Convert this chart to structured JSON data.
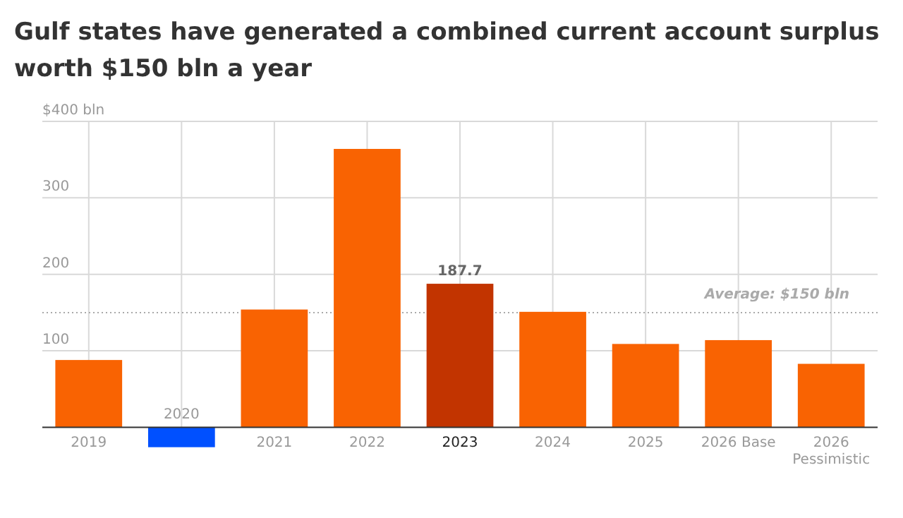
{
  "chart_data": {
    "type": "bar",
    "title": "Gulf states have generated a combined current account surplus worth $150 bln a year",
    "categories": [
      "2019",
      "2020",
      "2021",
      "2022",
      "2023",
      "2024",
      "2025",
      "2026 Base",
      "2026 Pessimistic"
    ],
    "values": [
      88,
      -26,
      154,
      364,
      187.7,
      151,
      109,
      114,
      83
    ],
    "colors": [
      "#f96302",
      "#0050ff",
      "#f96302",
      "#f96302",
      "#c23400",
      "#f96302",
      "#f96302",
      "#f96302",
      "#f96302"
    ],
    "value_labels": [
      null,
      null,
      null,
      null,
      "187.7",
      null,
      null,
      null,
      null
    ],
    "ylim": [
      -30,
      400
    ],
    "yticks": [
      100,
      200,
      300,
      {
        "value": 400,
        "label": "$400 bln"
      }
    ],
    "grid": true,
    "ref_lines": [
      {
        "axis": "y",
        "value": 150,
        "label": "Average: $150 bln",
        "line_style": "dotted",
        "color": "#aaaaaa"
      }
    ]
  }
}
